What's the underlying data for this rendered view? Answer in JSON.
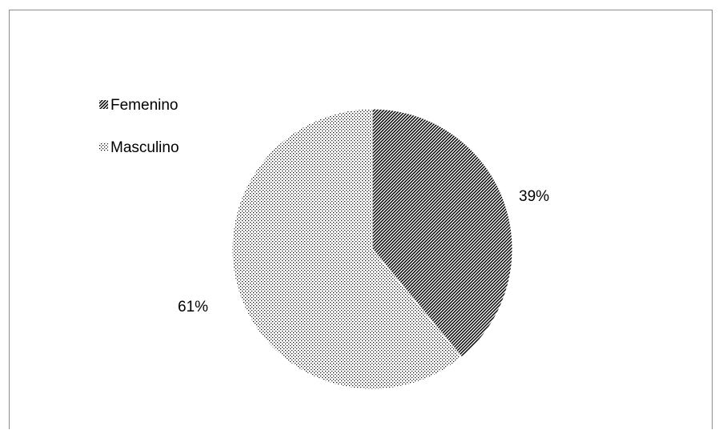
{
  "chart_data": {
    "type": "pie",
    "title": "",
    "categories": [
      "Femenino",
      "Masculino"
    ],
    "values": [
      39,
      61
    ],
    "data_labels": [
      "39%",
      "61%"
    ],
    "legend": {
      "placement": "top-left",
      "entries": [
        "Femenino",
        "Masculino"
      ]
    },
    "series": [
      {
        "values": [
          39,
          61
        ],
        "fills": [
          "diagonal-hatch",
          "dotted"
        ]
      }
    ],
    "colors": {
      "ink": "#000000",
      "background": "#ffffff",
      "frame": "#8c8c8c"
    }
  }
}
